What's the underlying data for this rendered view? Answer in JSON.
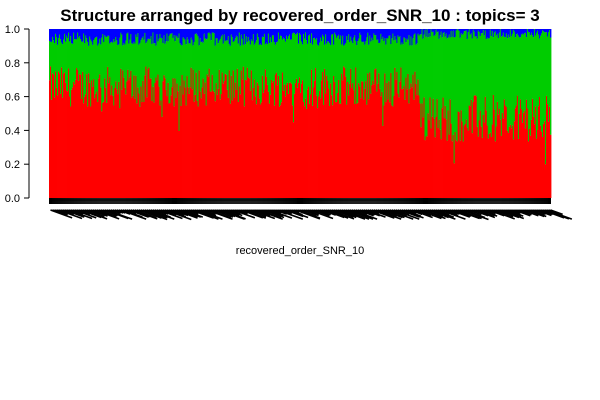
{
  "chart_data": {
    "type": "bar",
    "stacked": true,
    "title": "Structure arranged by recovered_order_SNR_10 : topics= 3",
    "xlabel": "recovered_order_SNR_10",
    "ylabel": "",
    "ylim": [
      0,
      1
    ],
    "yticks": [
      "0.0",
      "0.2",
      "0.4",
      "0.6",
      "0.8",
      "1.0"
    ],
    "grid": false,
    "legend": "none",
    "n_samples": 500,
    "colors": [
      "#FF0000",
      "#00CC00",
      "#0000FF"
    ],
    "series_description": "Three topic proportions per sample summing to 1; bottom topic red, middle green, top blue",
    "segments": [
      {
        "samples": [
          1,
          370
        ],
        "red_mean": 0.66,
        "red_spread": 0.12,
        "blue_mean": 0.06,
        "blue_spread": 0.04
      },
      {
        "samples": [
          371,
          500
        ],
        "red_mean": 0.47,
        "red_spread": 0.14,
        "blue_mean": 0.03,
        "blue_spread": 0.03
      }
    ],
    "xtick_labels_legible": false
  }
}
